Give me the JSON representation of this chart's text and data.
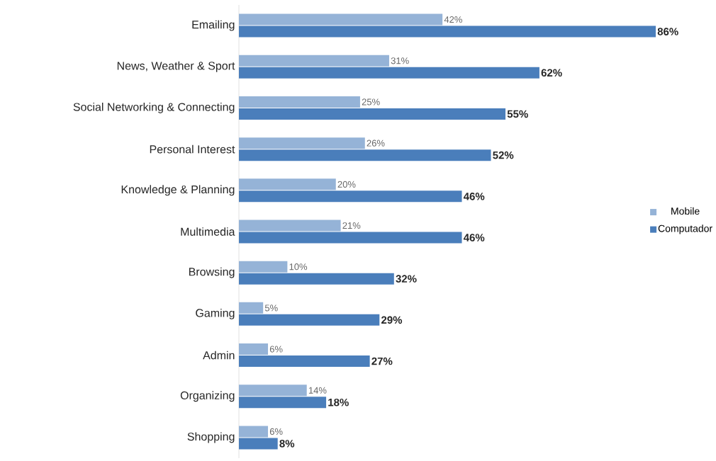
{
  "chart_data": {
    "type": "bar",
    "orientation": "horizontal",
    "categories": [
      "Emailing",
      "News, Weather & Sport",
      "Social Networking & Connecting",
      "Personal Interest",
      "Knowledge & Planning",
      "Multimedia",
      "Browsing",
      "Gaming",
      "Admin",
      "Organizing",
      "Shopping"
    ],
    "series": [
      {
        "name": "Mobile",
        "color": "#95b3d7",
        "values": [
          42,
          31,
          25,
          26,
          20,
          21,
          10,
          5,
          6,
          14,
          6
        ],
        "value_labels": [
          "42%",
          "31%",
          "25%",
          "26%",
          "20%",
          "21%",
          "10%",
          "5%",
          "6%",
          "14%",
          "6%"
        ]
      },
      {
        "name": "Computador",
        "color": "#4a7ebb",
        "values": [
          86,
          62,
          55,
          52,
          46,
          46,
          32,
          29,
          27,
          18,
          8
        ],
        "value_labels": [
          "86%",
          "62%",
          "55%",
          "52%",
          "46%",
          "46%",
          "32%",
          "29%",
          "27%",
          "18%",
          "8%"
        ]
      }
    ],
    "legend": "right"
  }
}
